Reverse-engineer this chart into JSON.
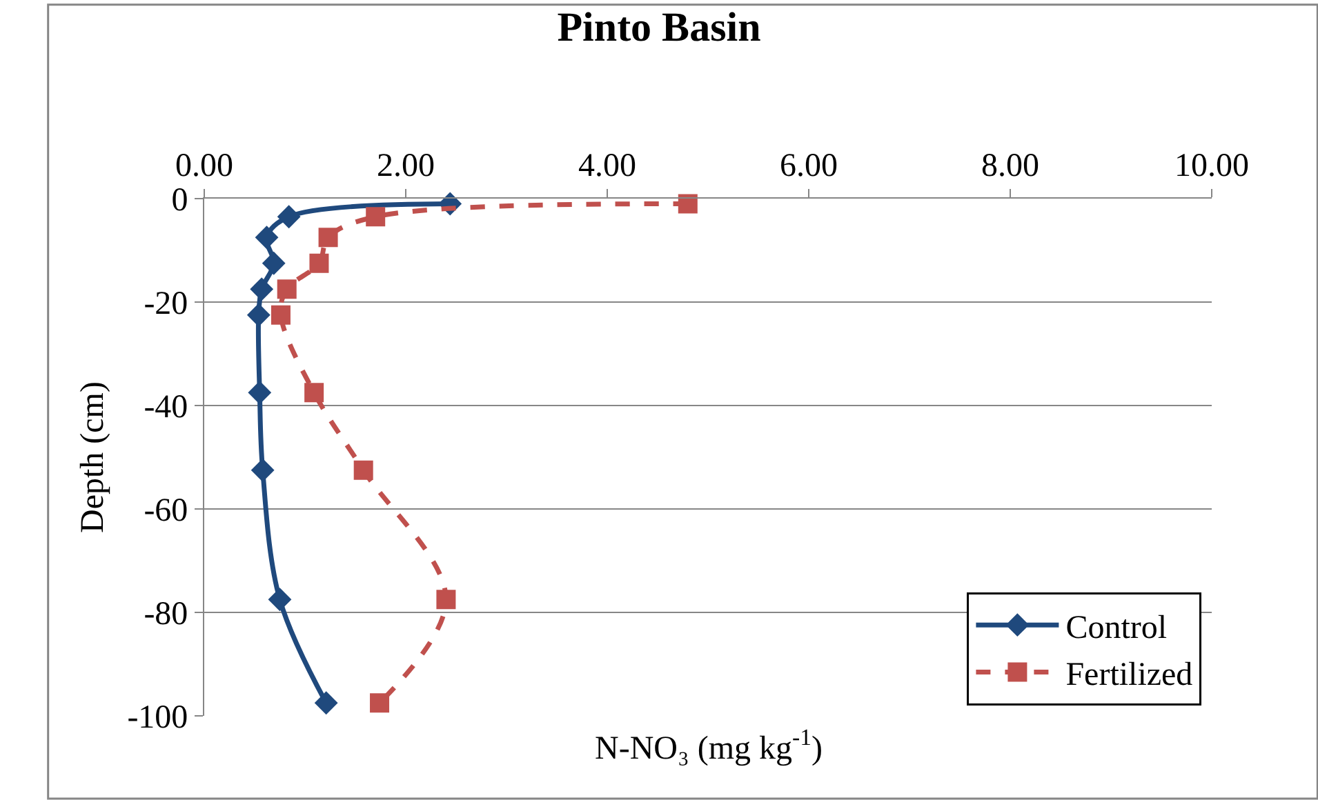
{
  "chart_data": {
    "type": "line",
    "title": "Pinto Basin",
    "xlabel": "N-NO₃ (mg kg$^{-1}$)",
    "ylabel": "Depth (cm)",
    "xlim": [
      0,
      10
    ],
    "xticks": [
      {
        "value": 0,
        "label": "0.00"
      },
      {
        "value": 2,
        "label": "2.00"
      },
      {
        "value": 4,
        "label": "4.00"
      },
      {
        "value": 6,
        "label": "6.00"
      },
      {
        "value": 8,
        "label": "8.00"
      },
      {
        "value": 10,
        "label": "10.00"
      }
    ],
    "ylim": [
      -100,
      0
    ],
    "yticks": [
      -100,
      -80,
      -60,
      -40,
      -20,
      0
    ],
    "grid": "y",
    "legend": "bottom right",
    "series": [
      {
        "name": "Control",
        "color": "#1f497d",
        "marker": "diamond",
        "line_style": "solid",
        "x": [
          2.44,
          0.84,
          0.62,
          0.69,
          0.57,
          0.54,
          0.55,
          0.58,
          0.75,
          1.21
        ],
        "values": [
          -1,
          -3.5,
          -7.5,
          -12.5,
          -17.5,
          -22.5,
          -37.5,
          -52.5,
          -77.5,
          -97.5
        ]
      },
      {
        "name": "Fertilized",
        "color": "#c0504d",
        "marker": "square",
        "line_style": "dashed",
        "x": [
          4.8,
          1.7,
          1.23,
          1.14,
          0.82,
          0.76,
          1.09,
          1.58,
          2.4,
          1.74
        ],
        "values": [
          -1,
          -3.5,
          -7.5,
          -12.5,
          -17.5,
          -22.5,
          -37.5,
          -52.5,
          -77.5,
          -97.5
        ]
      }
    ]
  }
}
